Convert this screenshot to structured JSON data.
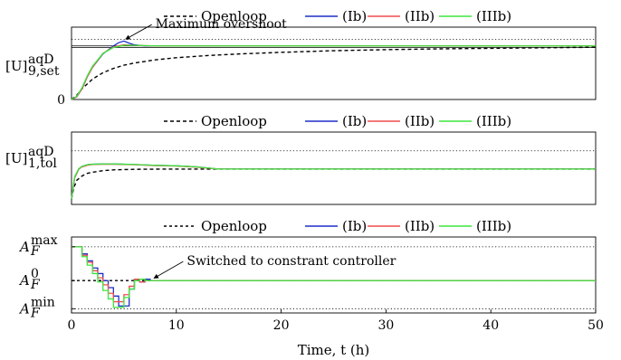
{
  "colors": {
    "openloop": "#000000",
    "ib": "#1f2fc8",
    "iib": "#ef4d4d",
    "iiib": "#3de63d"
  },
  "legend": {
    "entries": [
      {
        "key": "openloop",
        "label": "Openloop",
        "dash": "4 3"
      },
      {
        "key": "ib",
        "label": "(Ib)",
        "dash": ""
      },
      {
        "key": "iib",
        "label": "(IIb)",
        "dash": ""
      },
      {
        "key": "iiib",
        "label": "(IIIb)",
        "dash": ""
      }
    ],
    "panel3_openloop_dash": "3 3"
  },
  "chart_data": [
    {
      "type": "line",
      "panel": "top",
      "title": "",
      "ylabel_main": "[U]",
      "ylabel_sup": "aqD",
      "ylabel_sub": "9,set",
      "ytick_zero": "0",
      "xlim": [
        0,
        50
      ],
      "ylim": [
        0,
        1.35
      ],
      "setpoint": 1.0,
      "ref_dotted": [
        1.12
      ],
      "ref_solid": [
        0.97
      ],
      "annotation": {
        "text": "Maximum overshoot",
        "target": [
          4.9,
          1.09
        ],
        "label_at": [
          8,
          1.33
        ]
      },
      "series": [
        {
          "name": "Openloop",
          "key": "openloop",
          "x": [
            0,
            0.5,
            1,
            2,
            3,
            4,
            5,
            6,
            8,
            10,
            13,
            16,
            20,
            25,
            30,
            35,
            40,
            45,
            50
          ],
          "y": [
            0,
            0.08,
            0.2,
            0.38,
            0.5,
            0.58,
            0.64,
            0.68,
            0.74,
            0.78,
            0.82,
            0.85,
            0.88,
            0.91,
            0.93,
            0.945,
            0.955,
            0.965,
            0.975
          ]
        },
        {
          "name": "(Ib)",
          "key": "ib",
          "x": [
            0,
            0.5,
            1,
            1.5,
            2,
            3,
            4,
            4.5,
            5,
            5.5,
            6,
            7,
            8,
            10,
            15,
            50
          ],
          "y": [
            0,
            0.05,
            0.2,
            0.42,
            0.6,
            0.85,
            1.0,
            1.06,
            1.09,
            1.05,
            1.02,
            1.0,
            1.0,
            1.0,
            1.0,
            1.0
          ]
        },
        {
          "name": "(IIb)",
          "key": "iib",
          "x": [
            0,
            0.5,
            1,
            1.5,
            2,
            3,
            4,
            5,
            6,
            8,
            10,
            50
          ],
          "y": [
            0,
            0.05,
            0.2,
            0.42,
            0.6,
            0.86,
            0.98,
            1.02,
            1.01,
            1.0,
            1.0,
            1.0
          ]
        },
        {
          "name": "(IIIb)",
          "key": "iiib",
          "x": [
            0,
            0.5,
            1,
            1.5,
            2,
            3,
            4,
            5,
            6,
            8,
            10,
            50
          ],
          "y": [
            0,
            0.06,
            0.22,
            0.44,
            0.62,
            0.86,
            0.97,
            1.01,
            1.01,
            1.0,
            1.0,
            1.0
          ]
        }
      ]
    },
    {
      "type": "line",
      "panel": "middle",
      "title": "",
      "ylabel_main": "[U]",
      "ylabel_sup": "aqD",
      "ylabel_sub": "1,tol",
      "xlim": [
        0,
        50
      ],
      "ylim": [
        0,
        1.35
      ],
      "ref_dotted": [
        1.0
      ],
      "series": [
        {
          "name": "Openloop",
          "key": "openloop",
          "x": [
            0,
            0.2,
            0.5,
            1,
            1.5,
            2,
            3,
            4,
            5,
            6,
            8,
            10,
            12,
            15,
            50
          ],
          "y": [
            0.1,
            0.3,
            0.45,
            0.53,
            0.58,
            0.6,
            0.63,
            0.645,
            0.65,
            0.655,
            0.658,
            0.66,
            0.66,
            0.66,
            0.66
          ]
        },
        {
          "name": "(Ib)",
          "key": "ib",
          "x": [
            0,
            0.3,
            0.7,
            1,
            1.5,
            2,
            3,
            4,
            5,
            6,
            8,
            10,
            12,
            14,
            50
          ],
          "y": [
            0.1,
            0.5,
            0.66,
            0.71,
            0.74,
            0.75,
            0.755,
            0.755,
            0.75,
            0.745,
            0.73,
            0.72,
            0.7,
            0.66,
            0.66
          ]
        },
        {
          "name": "(IIb)",
          "key": "iib",
          "x": [
            0,
            0.3,
            0.7,
            1,
            1.5,
            2,
            3,
            4,
            5,
            6,
            8,
            10,
            12,
            14,
            50
          ],
          "y": [
            0.1,
            0.5,
            0.66,
            0.7,
            0.73,
            0.745,
            0.75,
            0.75,
            0.745,
            0.74,
            0.725,
            0.715,
            0.695,
            0.66,
            0.66
          ]
        },
        {
          "name": "(IIIb)",
          "key": "iiib",
          "x": [
            0,
            0.3,
            0.7,
            1,
            1.5,
            2,
            3,
            4,
            5,
            6,
            8,
            10,
            12,
            14,
            50
          ],
          "y": [
            0.1,
            0.52,
            0.67,
            0.71,
            0.74,
            0.75,
            0.755,
            0.755,
            0.75,
            0.745,
            0.73,
            0.72,
            0.7,
            0.66,
            0.66
          ]
        }
      ]
    },
    {
      "type": "line",
      "panel": "bottom",
      "title": "",
      "xlabel": "Time, t (h)",
      "xlim": [
        0,
        50
      ],
      "xticks": [
        0,
        10,
        20,
        30,
        40,
        50
      ],
      "ylim": [
        -1.15,
        1.55
      ],
      "yticks": [
        {
          "value": 1.2,
          "main": "A",
          "sub": "F",
          "sup": "max"
        },
        {
          "value": 0,
          "main": "A",
          "sub": "F",
          "sup": "0"
        },
        {
          "value": -1,
          "main": "A",
          "sub": "F",
          "sup": "min"
        }
      ],
      "ref_dotted": [
        1.2,
        -1
      ],
      "annotation": {
        "text": "Switched to constrant controller",
        "target": [
          7.6,
          0.02
        ],
        "label_at": [
          11,
          0.55
        ]
      },
      "series": [
        {
          "name": "Openloop",
          "key": "openloop",
          "x": [
            0,
            50
          ],
          "y": [
            0,
            0
          ]
        },
        {
          "name": "(Ib)",
          "key": "ib",
          "step": true,
          "x": [
            0,
            0.5,
            1,
            1.5,
            2,
            2.5,
            3,
            3.5,
            4,
            4.5,
            5,
            5.5,
            6,
            6.5,
            7,
            7.5,
            50
          ],
          "y": [
            1.2,
            1.2,
            0.95,
            0.7,
            0.45,
            0.25,
            0.0,
            -0.25,
            -0.55,
            -0.9,
            -0.9,
            -0.3,
            0.05,
            -0.05,
            0.05,
            0.0,
            0.0
          ]
        },
        {
          "name": "(IIb)",
          "key": "iib",
          "step": true,
          "x": [
            0,
            0.5,
            1,
            1.5,
            2,
            2.5,
            3,
            3.5,
            4,
            4.5,
            5,
            5.5,
            6,
            6.5,
            7,
            50
          ],
          "y": [
            1.2,
            1.2,
            0.9,
            0.65,
            0.35,
            0.1,
            -0.15,
            -0.45,
            -0.75,
            -0.75,
            -0.5,
            -0.2,
            0.05,
            -0.05,
            0.0,
            0.0
          ]
        },
        {
          "name": "(IIIb)",
          "key": "iiib",
          "step": true,
          "x": [
            0,
            0.5,
            1,
            1.5,
            2,
            2.5,
            3,
            3.5,
            4,
            4.5,
            5,
            5.5,
            6,
            6.5,
            7,
            50
          ],
          "y": [
            1.2,
            1.2,
            0.85,
            0.55,
            0.25,
            -0.05,
            -0.35,
            -0.65,
            -0.95,
            -0.95,
            -0.6,
            -0.3,
            0.0,
            0.05,
            0.0,
            0.0
          ]
        }
      ]
    }
  ]
}
